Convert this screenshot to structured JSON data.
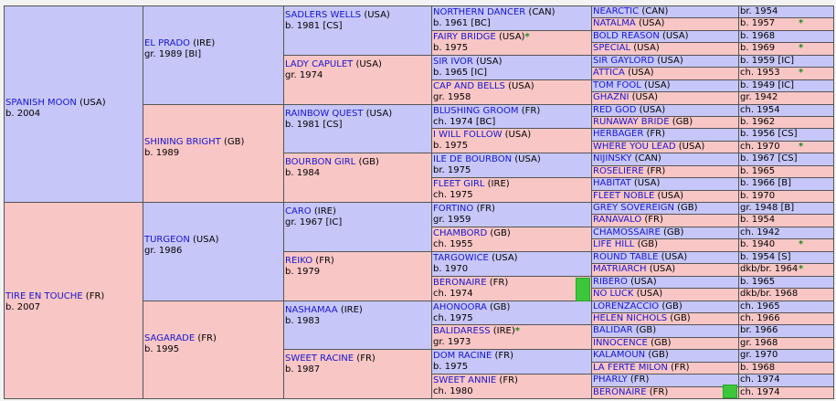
{
  "colors": {
    "male": "#c6c6f9",
    "female": "#f9c6c6",
    "name": "#1616cc",
    "star": "#1b8a1b",
    "bar": "#3cc63c"
  },
  "gen1": [
    {
      "name": "SPANISH MOON",
      "country": "(USA)",
      "info": "b. 2004"
    },
    {
      "name": "TIRE EN TOUCHE",
      "country": "(FR)",
      "info": "b. 2007"
    }
  ],
  "gen2": [
    {
      "name": "EL PRADO",
      "country": "(IRE)",
      "info": "gr. 1989 [BI]"
    },
    {
      "name": "SHINING BRIGHT",
      "country": "(GB)",
      "info": "b. 1989"
    },
    {
      "name": "TURGEON",
      "country": "(USA)",
      "info": "gr. 1986"
    },
    {
      "name": "SAGARADE",
      "country": "(FR)",
      "info": "b. 1995"
    }
  ],
  "gen3": [
    {
      "name": "SADLERS WELLS",
      "country": "(USA)",
      "info": "b. 1981 [CS]"
    },
    {
      "name": "LADY CAPULET",
      "country": "(USA)",
      "info": "gr. 1974"
    },
    {
      "name": "RAINBOW QUEST",
      "country": "(USA)",
      "info": "b. 1981 [CS]"
    },
    {
      "name": "BOURBON GIRL",
      "country": "(GB)",
      "info": "b. 1984"
    },
    {
      "name": "CARO",
      "country": "(IRE)",
      "info": "gr. 1967 [IC]"
    },
    {
      "name": "REIKO",
      "country": "(FR)",
      "info": "b. 1979"
    },
    {
      "name": "NASHAMAA",
      "country": "(IRE)",
      "info": "b. 1983"
    },
    {
      "name": "SWEET RACINE",
      "country": "(FR)",
      "info": "b. 1987"
    }
  ],
  "gen4": [
    {
      "name": "NORTHERN DANCER",
      "country": "(CAN)",
      "info": "b. 1961 [BC]",
      "star": ""
    },
    {
      "name": "FAIRY BRIDGE",
      "country": "(USA)",
      "info": "b. 1975",
      "star": "*"
    },
    {
      "name": "SIR IVOR",
      "country": "(USA)",
      "info": "b. 1965 [IC]",
      "star": ""
    },
    {
      "name": "CAP AND BELLS",
      "country": "(USA)",
      "info": "gr. 1958",
      "star": ""
    },
    {
      "name": "BLUSHING GROOM",
      "country": "(FR)",
      "info": "ch. 1974 [BC]",
      "star": ""
    },
    {
      "name": "I WILL FOLLOW",
      "country": "(USA)",
      "info": "b. 1975",
      "star": ""
    },
    {
      "name": "ILE DE BOURBON",
      "country": "(USA)",
      "info": "br. 1975",
      "star": ""
    },
    {
      "name": "FLEET GIRL",
      "country": "(IRE)",
      "info": "ch. 1975",
      "star": ""
    },
    {
      "name": "FORTINO",
      "country": "(FR)",
      "info": "gr. 1959",
      "star": ""
    },
    {
      "name": "CHAMBORD",
      "country": "(GB)",
      "info": "ch. 1955",
      "star": ""
    },
    {
      "name": "TARGOWICE",
      "country": "(USA)",
      "info": "b. 1970",
      "star": ""
    },
    {
      "name": "BERONAIRE",
      "country": "(FR)",
      "info": "ch. 1974",
      "star": ""
    },
    {
      "name": "AHONOORA",
      "country": "(GB)",
      "info": "ch. 1975",
      "star": ""
    },
    {
      "name": "BALIDARESS",
      "country": "(IRE)",
      "info": "gr. 1973",
      "star": "*"
    },
    {
      "name": "DOM RACINE",
      "country": "(FR)",
      "info": "b. 1975",
      "star": ""
    },
    {
      "name": "SWEET ANNIE",
      "country": "(FR)",
      "info": "ch. 1980",
      "star": ""
    }
  ],
  "gen5": [
    {
      "name": "NEARCTIC",
      "country": "(CAN)",
      "info": "br. 1954",
      "star": ""
    },
    {
      "name": "NATALMA",
      "country": "(USA)",
      "info": "b. 1957",
      "star": "*"
    },
    {
      "name": "BOLD REASON",
      "country": "(USA)",
      "info": "b. 1968",
      "star": ""
    },
    {
      "name": "SPECIAL",
      "country": "(USA)",
      "info": "b. 1969",
      "star": "*"
    },
    {
      "name": "SIR GAYLORD",
      "country": "(USA)",
      "info": "b. 1959 [IC]",
      "star": ""
    },
    {
      "name": "ATTICA",
      "country": "(USA)",
      "info": "ch. 1953",
      "star": "*"
    },
    {
      "name": "TOM FOOL",
      "country": "(USA)",
      "info": "b. 1949 [IC]",
      "star": ""
    },
    {
      "name": "GHAZNI",
      "country": "(USA)",
      "info": "gr. 1942",
      "star": ""
    },
    {
      "name": "RED GOD",
      "country": "(USA)",
      "info": "ch. 1954",
      "star": ""
    },
    {
      "name": "RUNAWAY BRIDE",
      "country": "(GB)",
      "info": "b. 1962",
      "star": ""
    },
    {
      "name": "HERBAGER",
      "country": "(FR)",
      "info": "b. 1956 [CS]",
      "star": ""
    },
    {
      "name": "WHERE YOU LEAD",
      "country": "(USA)",
      "info": "ch. 1970",
      "star": "*"
    },
    {
      "name": "NIJINSKY",
      "country": "(CAN)",
      "info": "b. 1967 [CS]",
      "star": ""
    },
    {
      "name": "ROSELIERE",
      "country": "(FR)",
      "info": "b. 1965",
      "star": ""
    },
    {
      "name": "HABITAT",
      "country": "(USA)",
      "info": "b. 1966 [B]",
      "star": ""
    },
    {
      "name": "FLEET NOBLE",
      "country": "(USA)",
      "info": "b. 1970",
      "star": ""
    },
    {
      "name": "GREY SOVEREIGN",
      "country": "(GB)",
      "info": "gr. 1948 [B]",
      "star": ""
    },
    {
      "name": "RANAVALO",
      "country": "(FR)",
      "info": "b. 1954",
      "star": ""
    },
    {
      "name": "CHAMOSSAIRE",
      "country": "(GB)",
      "info": "ch. 1942",
      "star": ""
    },
    {
      "name": "LIFE HILL",
      "country": "(GB)",
      "info": "b. 1940",
      "star": "*"
    },
    {
      "name": "ROUND TABLE",
      "country": "(USA)",
      "info": "b. 1954 [S]",
      "star": ""
    },
    {
      "name": "MATRIARCH",
      "country": "(USA)",
      "info": "dkb/br. 1964",
      "star": "*"
    },
    {
      "name": "RIBERO",
      "country": "(USA)",
      "info": "b. 1965",
      "star": ""
    },
    {
      "name": "NO LUCK",
      "country": "(USA)",
      "info": "dkb/br. 1968",
      "star": ""
    },
    {
      "name": "LORENZACCIO",
      "country": "(GB)",
      "info": "ch. 1965",
      "star": ""
    },
    {
      "name": "HELEN NICHOLS",
      "country": "(GB)",
      "info": "ch. 1966",
      "star": ""
    },
    {
      "name": "BALIDAR",
      "country": "(GB)",
      "info": "br. 1966",
      "star": ""
    },
    {
      "name": "INNOCENCE",
      "country": "(GB)",
      "info": "gr. 1968",
      "star": ""
    },
    {
      "name": "KALAMOUN",
      "country": "(GB)",
      "info": "gr. 1970",
      "star": ""
    },
    {
      "name": "LA FERTE MILON",
      "country": "(FR)",
      "info": "b. 1968",
      "star": ""
    },
    {
      "name": "PHARLY",
      "country": "(FR)",
      "info": "ch. 1974",
      "star": ""
    },
    {
      "name": "BERONAIRE",
      "country": "(FR)",
      "info": "ch. 1974",
      "star": ""
    }
  ]
}
